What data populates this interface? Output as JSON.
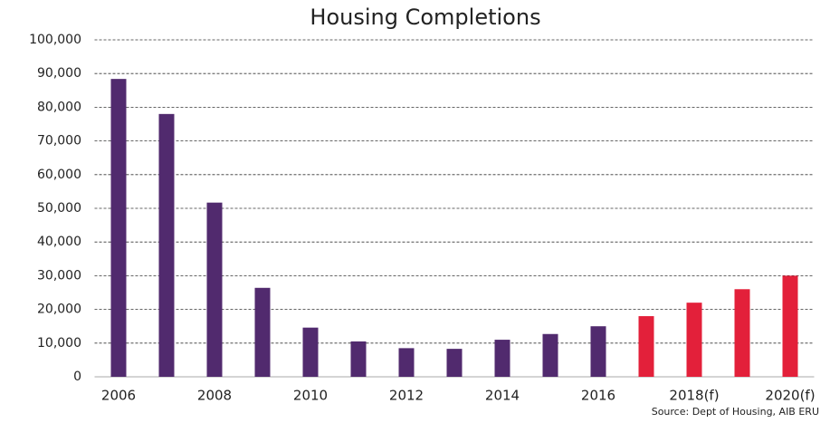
{
  "chart_data": {
    "type": "bar",
    "title": "Housing Completions",
    "source": "Source: Dept of Housing, AIB ERU",
    "categories": [
      "2006",
      null,
      "2008",
      null,
      "2010",
      null,
      "2012",
      null,
      "2014",
      null,
      "2016",
      null,
      "2018(f)",
      null,
      "2020(f)"
    ],
    "values": [
      88400,
      78000,
      51700,
      26400,
      14600,
      10500,
      8500,
      8300,
      11000,
      12700,
      15000,
      18000,
      22000,
      26000,
      30000
    ],
    "colors": [
      "#512a6e",
      "#512a6e",
      "#512a6e",
      "#512a6e",
      "#512a6e",
      "#512a6e",
      "#512a6e",
      "#512a6e",
      "#512a6e",
      "#512a6e",
      "#512a6e",
      "#e3203a",
      "#e3203a",
      "#e3203a",
      "#e3203a"
    ],
    "ylim": [
      0,
      100000
    ],
    "yticks": [
      0,
      {
        "value": 10000,
        "label": "10,000"
      },
      {
        "value": 20000,
        "label": "20,000"
      },
      {
        "value": 30000,
        "label": "30,000"
      },
      {
        "value": 40000,
        "label": "40,000"
      },
      {
        "value": 50000,
        "label": "50,000"
      },
      {
        "value": 60000,
        "label": "60,000"
      },
      {
        "value": 70000,
        "label": "70,000"
      },
      {
        "value": 80000,
        "label": "80,000"
      },
      {
        "value": 90000,
        "label": "90,000"
      },
      {
        "value": 100000,
        "label": "100,000"
      }
    ],
    "grid": true
  }
}
